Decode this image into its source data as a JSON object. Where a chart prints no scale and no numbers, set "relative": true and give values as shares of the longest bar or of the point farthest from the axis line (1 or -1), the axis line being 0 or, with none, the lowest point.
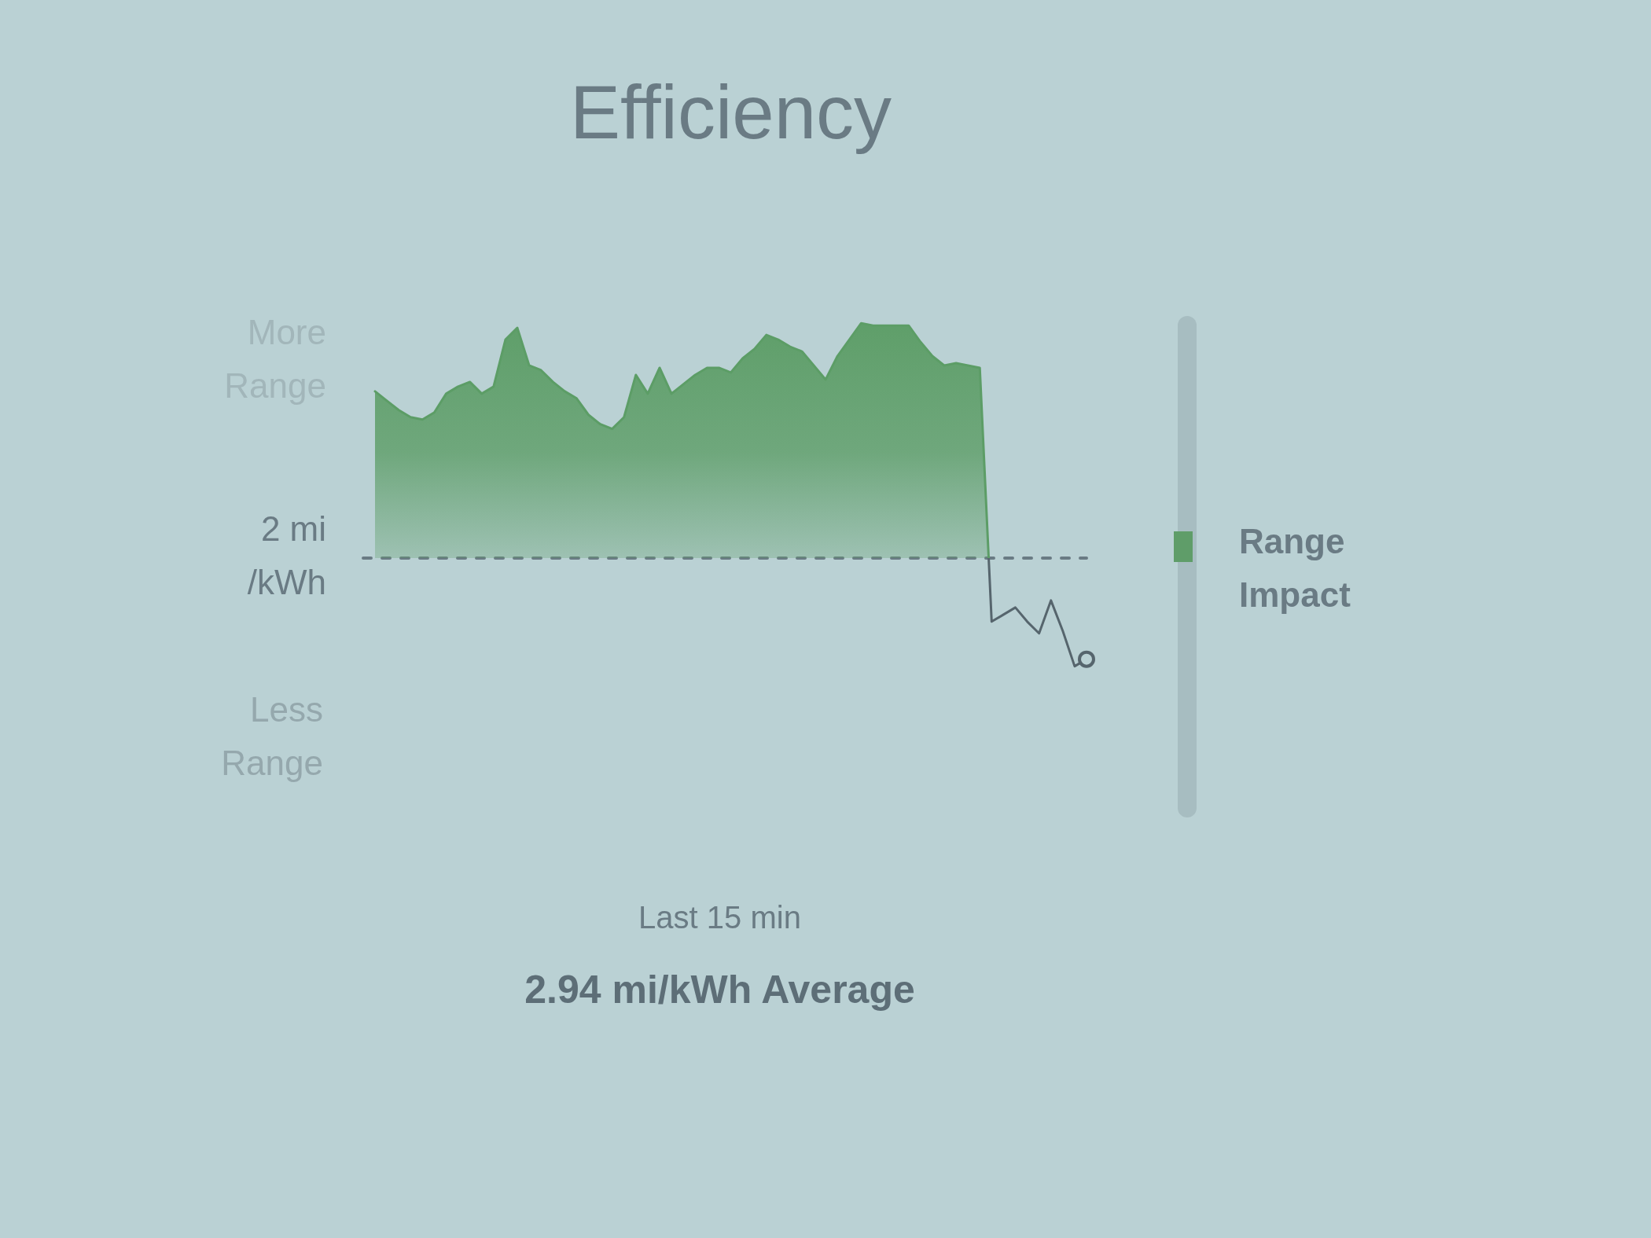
{
  "chart_data": {
    "type": "area",
    "title": "Efficiency",
    "relative": true,
    "categories": [
      null,
      null,
      null,
      null,
      null,
      null,
      null,
      null,
      null,
      null,
      null,
      null,
      null,
      null,
      null,
      null,
      null,
      null,
      null,
      null,
      null,
      null,
      null,
      null,
      null,
      null,
      null,
      null,
      null,
      null,
      null,
      null,
      null,
      null,
      null,
      null,
      null,
      null,
      null,
      null,
      null,
      null,
      null,
      null,
      null,
      null,
      null,
      null,
      null,
      null,
      null,
      null,
      null,
      null,
      null,
      null,
      null,
      null,
      null,
      null,
      null
    ],
    "values": [
      0.71,
      0.67,
      0.63,
      0.6,
      0.59,
      0.62,
      0.7,
      0.73,
      0.75,
      0.7,
      0.73,
      0.93,
      0.98,
      0.82,
      0.8,
      0.75,
      0.71,
      0.68,
      0.61,
      0.57,
      0.55,
      0.6,
      0.78,
      0.7,
      0.81,
      0.7,
      0.74,
      0.78,
      0.81,
      0.81,
      0.79,
      0.85,
      0.89,
      0.95,
      0.93,
      0.9,
      0.88,
      0.82,
      0.76,
      0.86,
      0.93,
      1,
      0.99,
      0.99,
      0.99,
      0.99,
      0.92,
      0.86,
      0.82,
      0.83,
      0.82,
      0.81,
      -0.27,
      -0.24,
      -0.21,
      -0.27,
      -0.32,
      -0.18,
      -0.31,
      -0.46,
      -0.43
    ],
    "color": "#5c9d66",
    "ref_lines": [
      {
        "axis": "y",
        "value": 0,
        "label": "2 mi /kWh",
        "line_style": "dashed"
      }
    ],
    "annotations": [
      "More Range",
      "Less Range",
      "Range Impact",
      "Last 15 min",
      "2.94 mi/kWh Average"
    ]
  }
}
